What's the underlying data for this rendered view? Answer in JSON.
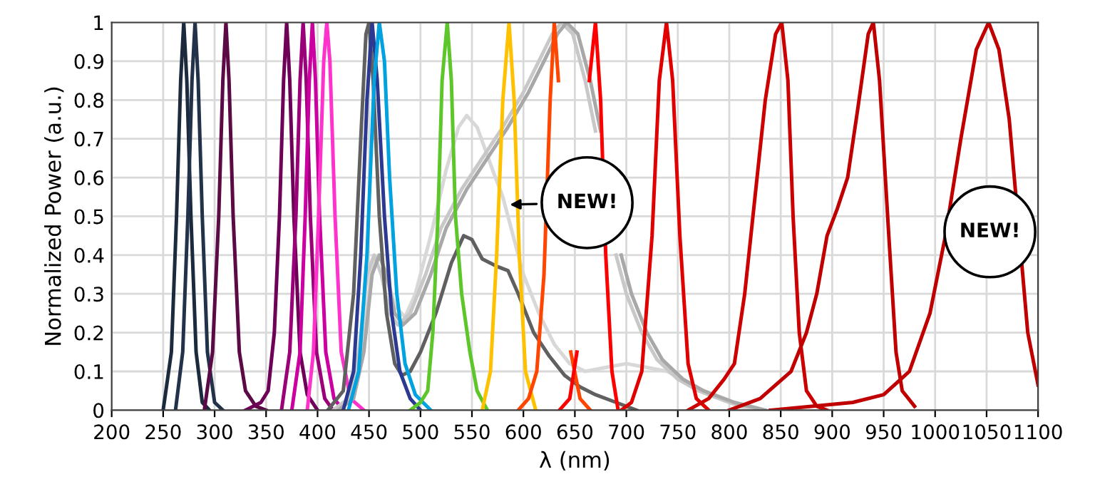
{
  "chart_data": {
    "type": "line",
    "xlabel": "λ (nm)",
    "ylabel": "Normalized Power (a.u.)",
    "xlim": [
      200,
      1100
    ],
    "ylim": [
      0,
      1
    ],
    "xticks": [
      200,
      250,
      300,
      350,
      400,
      450,
      500,
      550,
      600,
      650,
      700,
      750,
      800,
      850,
      900,
      950,
      1000,
      1050,
      1100
    ],
    "yticks": [
      0,
      0.1,
      0.2,
      0.3,
      0.4,
      0.5,
      0.6,
      0.7,
      0.8,
      0.9,
      1
    ],
    "grid": true,
    "legend": false,
    "marker": "none",
    "line_style": "solid",
    "annotations": [
      {
        "text": "NEW!",
        "x": 583,
        "y": 0.53
      },
      "NEW!"
    ],
    "series": [
      {
        "color": "#1c2a3e",
        "x": [
          250,
          258,
          263,
          267,
          270,
          273,
          277,
          282,
          288,
          295
        ],
        "values": [
          0,
          0.15,
          0.5,
          0.85,
          1,
          0.85,
          0.5,
          0.15,
          0.02,
          0
        ]
      },
      {
        "color": "#22324a",
        "x": [
          262,
          269,
          274,
          278,
          281,
          284,
          288,
          293,
          300,
          308
        ],
        "values": [
          0,
          0.15,
          0.5,
          0.85,
          1,
          0.85,
          0.5,
          0.15,
          0.02,
          0
        ]
      },
      {
        "color": "#5c0a46",
        "x": [
          290,
          298,
          304,
          308,
          311,
          314,
          318,
          324,
          330,
          340,
          350
        ],
        "values": [
          0,
          0.15,
          0.5,
          0.85,
          1,
          0.85,
          0.5,
          0.15,
          0.05,
          0.01,
          0
        ]
      },
      {
        "color": "#6e0057",
        "x": [
          330,
          345,
          352,
          358,
          363,
          367,
          370,
          373,
          377,
          383,
          390,
          400
        ],
        "values": [
          0,
          0.02,
          0.05,
          0.2,
          0.5,
          0.85,
          1,
          0.85,
          0.5,
          0.15,
          0.04,
          0
        ]
      },
      {
        "color": "#9a0078",
        "x": [
          365,
          373,
          379,
          383,
          386,
          389,
          393,
          399,
          407,
          415
        ],
        "values": [
          0,
          0.15,
          0.5,
          0.85,
          1,
          0.85,
          0.5,
          0.15,
          0.03,
          0
        ]
      },
      {
        "color": "#cc00a0",
        "x": [
          375,
          383,
          388,
          392,
          395,
          398,
          402,
          408,
          416,
          425
        ],
        "values": [
          0,
          0.15,
          0.5,
          0.85,
          1,
          0.85,
          0.5,
          0.15,
          0.03,
          0
        ]
      },
      {
        "color": "#ff33cc",
        "x": [
          390,
          396,
          401,
          406,
          409,
          412,
          417,
          423,
          432,
          445
        ],
        "values": [
          0,
          0.15,
          0.5,
          0.9,
          1,
          0.9,
          0.5,
          0.15,
          0.03,
          0
        ]
      },
      {
        "color": "#d8d8d8",
        "x": [
          420,
          435,
          445,
          453,
          460,
          467,
          475,
          485,
          495,
          510,
          525,
          537,
          545,
          555,
          570,
          580,
          590,
          600,
          615,
          630,
          645,
          660,
          680,
          700,
          720,
          740,
          760,
          780,
          800,
          820
        ],
        "values": [
          0,
          0.05,
          0.2,
          0.37,
          0.4,
          0.35,
          0.27,
          0.24,
          0.3,
          0.45,
          0.62,
          0.73,
          0.76,
          0.73,
          0.62,
          0.55,
          0.45,
          0.35,
          0.25,
          0.17,
          0.12,
          0.1,
          0.11,
          0.12,
          0.11,
          0.1,
          0.07,
          0.04,
          0.02,
          0
        ]
      },
      {
        "color": "#c8c8c8",
        "x": [
          415,
          430,
          440,
          448,
          455,
          462,
          470,
          478,
          490,
          505,
          520,
          540,
          560,
          580,
          600,
          615,
          628,
          637,
          648,
          660,
          670,
          680,
          690,
          700,
          715,
          730,
          750,
          770,
          800,
          830
        ],
        "values": [
          0,
          0.03,
          0.15,
          0.35,
          0.4,
          0.35,
          0.25,
          0.22,
          0.25,
          0.35,
          0.47,
          0.57,
          0.65,
          0.73,
          0.82,
          0.9,
          0.97,
          1,
          0.97,
          0.85,
          0.72,
          null,
          0.4,
          0.3,
          0.2,
          0.13,
          0.08,
          0.05,
          0.02,
          0
        ]
      },
      {
        "color": "#a8a8a8",
        "x": [
          420,
          435,
          445,
          453,
          460,
          467,
          475,
          483,
          495,
          510,
          525,
          545,
          565,
          585,
          605,
          620,
          633,
          642,
          653,
          665,
          675,
          685,
          695,
          705,
          720,
          735,
          755,
          775,
          805,
          835
        ],
        "values": [
          0,
          0.03,
          0.15,
          0.35,
          0.4,
          0.35,
          0.25,
          0.22,
          0.25,
          0.35,
          0.47,
          0.57,
          0.65,
          0.73,
          0.82,
          0.9,
          0.97,
          1,
          0.97,
          0.85,
          0.72,
          null,
          0.4,
          0.3,
          0.2,
          0.13,
          0.08,
          0.05,
          0.02,
          0
        ]
      },
      {
        "color": "#606060",
        "x": [
          410,
          425,
          435,
          442,
          447,
          450,
          454,
          460,
          467,
          475,
          482,
          490,
          500,
          515,
          530,
          542,
          550,
          560,
          575,
          585,
          595,
          610,
          625,
          640,
          655,
          670,
          690,
          710
        ],
        "values": [
          0,
          0.05,
          0.3,
          0.7,
          0.97,
          1,
          0.85,
          0.5,
          0.25,
          0.12,
          0.09,
          0.1,
          0.15,
          0.25,
          0.38,
          0.45,
          0.44,
          0.39,
          0.37,
          0.36,
          0.3,
          0.2,
          0.14,
          0.09,
          0.06,
          0.04,
          0.02,
          0
        ]
      },
      {
        "color": "#2b3990",
        "x": [
          425,
          435,
          442,
          448,
          453,
          458,
          465,
          472,
          480,
          490,
          500
        ],
        "values": [
          0,
          0.1,
          0.4,
          0.8,
          1,
          0.85,
          0.5,
          0.25,
          0.1,
          0.03,
          0
        ]
      },
      {
        "color": "#00a2e0",
        "x": [
          430,
          440,
          448,
          455,
          460,
          465,
          470,
          477,
          485,
          495,
          510
        ],
        "values": [
          0,
          0.1,
          0.4,
          0.85,
          1,
          0.9,
          0.6,
          0.3,
          0.12,
          0.04,
          0
        ]
      },
      {
        "color": "#5cc62a",
        "x": [
          490,
          500,
          507,
          512,
          517,
          521,
          526,
          530,
          534,
          540,
          548,
          555,
          565
        ],
        "values": [
          0,
          0.02,
          0.05,
          0.2,
          0.5,
          0.85,
          1,
          0.85,
          0.5,
          0.3,
          0.15,
          0.05,
          0
        ]
      },
      {
        "color": "#ffc000",
        "x": [
          560,
          568,
          574,
          580,
          586,
          591,
          596,
          602,
          612
        ],
        "values": [
          0,
          0.1,
          0.4,
          0.8,
          1,
          0.8,
          0.4,
          0.1,
          0
        ]
      },
      {
        "color": "#ff4500",
        "x": [
          595,
          605,
          613,
          620,
          626,
          630,
          634,
          640,
          646,
          655,
          665
        ],
        "values": [
          0,
          0.03,
          0.1,
          0.35,
          0.8,
          1,
          0.85,
          null,
          0.15,
          0.03,
          0
        ]
      },
      {
        "color": "#ff0000",
        "x": [
          635,
          645,
          652,
          658,
          664,
          670,
          675,
          680,
          686,
          692
        ],
        "values": [
          0,
          0.03,
          0.15,
          null,
          0.85,
          1,
          0.8,
          0.4,
          0.1,
          0
        ]
      },
      {
        "color": "#e00000",
        "x": [
          695,
          705,
          715,
          725,
          732,
          739,
          745,
          752,
          760,
          768,
          780
        ],
        "values": [
          0,
          0.02,
          0.1,
          0.45,
          0.85,
          1,
          0.85,
          0.45,
          0.12,
          0.03,
          0
        ]
      },
      {
        "color": "#cc0000",
        "x": [
          760,
          780,
          795,
          805,
          815,
          825,
          835,
          845,
          851,
          857,
          862,
          868,
          875,
          885,
          895
        ],
        "values": [
          0,
          0.03,
          0.08,
          0.12,
          0.3,
          0.55,
          0.8,
          0.97,
          1,
          0.85,
          0.5,
          0.2,
          0.05,
          0.01,
          0
        ]
      },
      {
        "color": "#c00000",
        "x": [
          800,
          830,
          860,
          875,
          885,
          895,
          905,
          915,
          925,
          935,
          940,
          946,
          955,
          962,
          968,
          980
        ],
        "values": [
          0,
          0.03,
          0.1,
          0.2,
          0.3,
          0.45,
          0.52,
          0.6,
          0.78,
          0.97,
          1,
          0.85,
          0.45,
          0.15,
          0.05,
          0.01
        ]
      },
      {
        "color": "#c00000",
        "x": [
          840,
          880,
          920,
          950,
          975,
          995,
          1010,
          1025,
          1040,
          1052,
          1062,
          1072,
          1090,
          1100
        ],
        "values": [
          0,
          0.01,
          0.02,
          0.04,
          0.1,
          0.25,
          0.45,
          0.7,
          0.93,
          1,
          0.93,
          0.75,
          0.2,
          0.065
        ]
      }
    ]
  }
}
